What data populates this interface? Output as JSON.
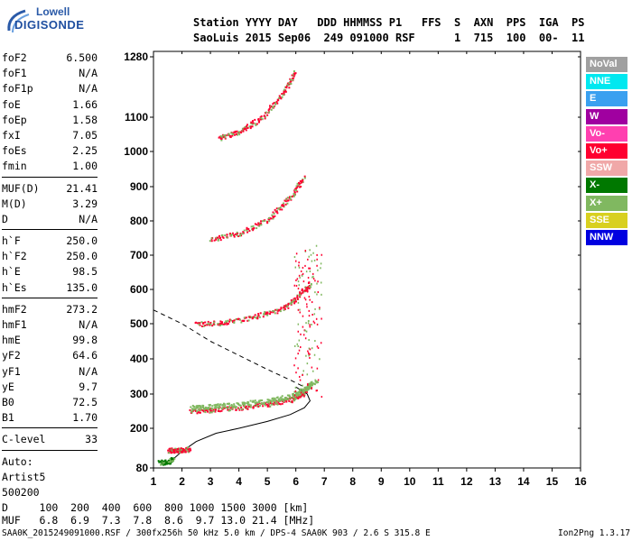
{
  "logo": {
    "line1": "Lowell",
    "line2": "DIGISONDE"
  },
  "header": {
    "labels": "Station YYYY DAY   DDD HHMMSS P1   FFS  S  AXN  PPS  IGA  PS",
    "values": "SaoLuis 2015 Sep06  249 091000 RSF      1  715  100  00-  11"
  },
  "params": [
    [
      {
        "k": "foF2",
        "v": "6.500"
      },
      {
        "k": "foF1",
        "v": "N/A"
      },
      {
        "k": "foF1p",
        "v": "N/A"
      },
      {
        "k": "foE",
        "v": "1.66"
      },
      {
        "k": "foEp",
        "v": "1.58"
      },
      {
        "k": "fxI",
        "v": "7.05"
      },
      {
        "k": "foEs",
        "v": "2.25"
      },
      {
        "k": "fmin",
        "v": "1.00"
      }
    ],
    [
      {
        "k": "MUF(D)",
        "v": "21.41"
      },
      {
        "k": "M(D)",
        "v": "3.29"
      },
      {
        "k": "D",
        "v": "N/A"
      }
    ],
    [
      {
        "k": "h`F",
        "v": "250.0"
      },
      {
        "k": "h`F2",
        "v": "250.0"
      },
      {
        "k": "h`E",
        "v": "98.5"
      },
      {
        "k": "h`Es",
        "v": "135.0"
      }
    ],
    [
      {
        "k": "hmF2",
        "v": "273.2"
      },
      {
        "k": "hmF1",
        "v": "N/A"
      },
      {
        "k": "hmE",
        "v": "99.8"
      },
      {
        "k": "yF2",
        "v": "64.6"
      },
      {
        "k": "yF1",
        "v": "N/A"
      },
      {
        "k": "yE",
        "v": "9.7"
      },
      {
        "k": "B0",
        "v": "72.5"
      },
      {
        "k": "B1",
        "v": "1.70"
      }
    ],
    [
      {
        "k": "C-level",
        "v": "33"
      }
    ]
  ],
  "auto": {
    "line1": "Auto:",
    "line2": "Artist5",
    "line3": "500200"
  },
  "muf_table": {
    "d_line": "D     100  200  400  600  800 1000 1500 3000 [km]",
    "muf_line": "MUF   6.8  6.9  7.3  7.8  8.6  9.7 13.0 21.4 [MHz]"
  },
  "footer": {
    "left": "SAA0K_2015249091000.RSF / 300fx256h 50 kHz 5.0 km / DPS-4 SAA0K 903 / 2.6 S 315.8 E",
    "right": "Ion2Png 1.3.17"
  },
  "legend": [
    {
      "label": "NoVal",
      "color": "#a0a0a0"
    },
    {
      "label": "NNE",
      "color": "#00e8f0"
    },
    {
      "label": "E",
      "color": "#3aa0f0"
    },
    {
      "label": "W",
      "color": "#a000a0"
    },
    {
      "label": "Vo-",
      "color": "#ff40b0"
    },
    {
      "label": "Vo+",
      "color": "#ff0030"
    },
    {
      "label": "SSW",
      "color": "#f0a8a8"
    },
    {
      "label": "X-",
      "color": "#007800"
    },
    {
      "label": "X+",
      "color": "#80b860"
    },
    {
      "label": "SSE",
      "color": "#d8d020"
    },
    {
      "label": "NNW",
      "color": "#0000e0"
    }
  ],
  "chart_data": {
    "type": "scatter",
    "title": "",
    "xlabel": "",
    "ylabel": "",
    "x_ticks": [
      1,
      2,
      3,
      4,
      5,
      6,
      7,
      8,
      9,
      10,
      11,
      12,
      13,
      14,
      15,
      16
    ],
    "y_ticks": [
      80,
      200,
      300,
      400,
      500,
      600,
      700,
      800,
      900,
      1000,
      1100,
      1280
    ],
    "xlim": [
      1,
      16
    ],
    "ylim": [
      80,
      1280
    ],
    "y_scale": "sqrt-like (ionogram virtual height)",
    "traces": [
      {
        "name": "F2 O-trace",
        "color": "#ff0030",
        "x": [
          2.3,
          3.0,
          4.0,
          5.0,
          5.8,
          6.2,
          6.5
        ],
        "y": [
          252,
          255,
          262,
          272,
          285,
          300,
          330
        ]
      },
      {
        "name": "F2 X-trace",
        "color": "#80b860",
        "x": [
          2.3,
          3.0,
          4.0,
          5.0,
          5.8,
          6.3,
          6.7
        ],
        "y": [
          262,
          265,
          272,
          282,
          295,
          315,
          340
        ]
      },
      {
        "name": "2nd hop",
        "color": "#ff0030",
        "x": [
          2.5,
          3.5,
          4.5,
          5.5,
          6.0,
          6.5
        ],
        "y": [
          500,
          505,
          520,
          545,
          575,
          620
        ]
      },
      {
        "name": "3rd hop",
        "color": "#ff0030",
        "x": [
          3.0,
          4.0,
          5.0,
          5.8,
          6.3
        ],
        "y": [
          748,
          765,
          805,
          870,
          930
        ]
      },
      {
        "name": "4th hop",
        "color": "#ff0030",
        "x": [
          3.3,
          4.0,
          4.8,
          5.5,
          6.0
        ],
        "y": [
          1040,
          1060,
          1100,
          1170,
          1240
        ]
      },
      {
        "name": "Es trace",
        "color": "#ff0030",
        "x": [
          1.5,
          1.8,
          2.0,
          2.25
        ],
        "y": [
          135,
          135,
          136,
          138
        ]
      },
      {
        "name": "E trace",
        "color": "#007800",
        "x": [
          1.2,
          1.5,
          1.66
        ],
        "y": [
          98,
          100,
          108
        ]
      }
    ],
    "profile_solid": {
      "x": [
        1.6,
        2.0,
        2.5,
        3.2,
        4.0,
        5.0,
        5.8,
        6.3,
        6.5,
        6.4,
        6.0
      ],
      "y": [
        100,
        130,
        160,
        185,
        200,
        220,
        240,
        260,
        280,
        300,
        320
      ]
    },
    "profile_dashed": {
      "x": [
        1.0,
        2.0,
        3.0,
        4.0,
        5.0,
        5.8,
        6.3,
        6.5
      ],
      "y": [
        540,
        500,
        450,
        410,
        370,
        340,
        320,
        310
      ]
    },
    "grid": false,
    "legend_position": "right"
  }
}
